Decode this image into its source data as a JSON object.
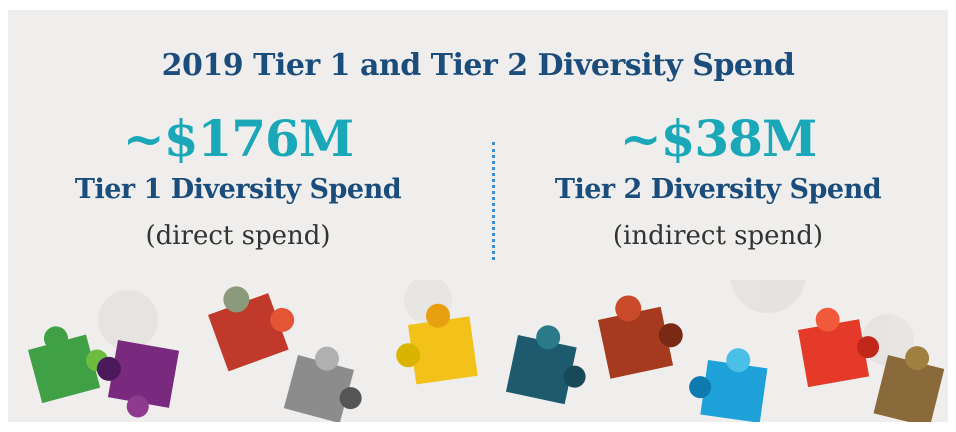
{
  "header": {
    "title": "2019 Tier 1 and Tier 2 Diversity Spend"
  },
  "panels": [
    {
      "amount": "~$176M",
      "label": "Tier 1 Diversity Spend",
      "note": "(direct spend)"
    },
    {
      "amount": "~$38M",
      "label": "Tier 2 Diversity Spend",
      "note": "(indirect spend)"
    }
  ]
}
